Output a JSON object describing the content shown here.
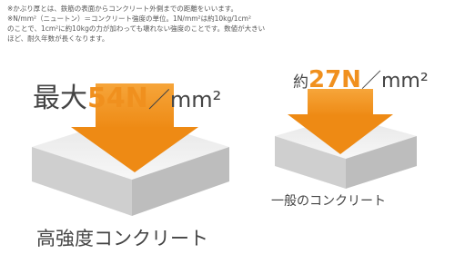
{
  "note_lines": [
    "※かぶり厚とは、鉄筋の表面からコンクリート外側までの距離をいいます。",
    "※N/mm²（ニュートン）＝コンクリート強度の単位。1N/mm²は約10kg/1cm²",
    "のことで、1cm²に約10kgの力が加わっても壊れない強度のことです。数値が大きい",
    "ほど、耐久年数が長くなります。"
  ],
  "high": {
    "prefix": "最大",
    "value": "54N",
    "unit": "／mm²",
    "label": "高強度コンクリート"
  },
  "normal": {
    "prefix": "約",
    "value": "27N",
    "unit": "／mm²",
    "label": "一般のコンクリート"
  }
}
